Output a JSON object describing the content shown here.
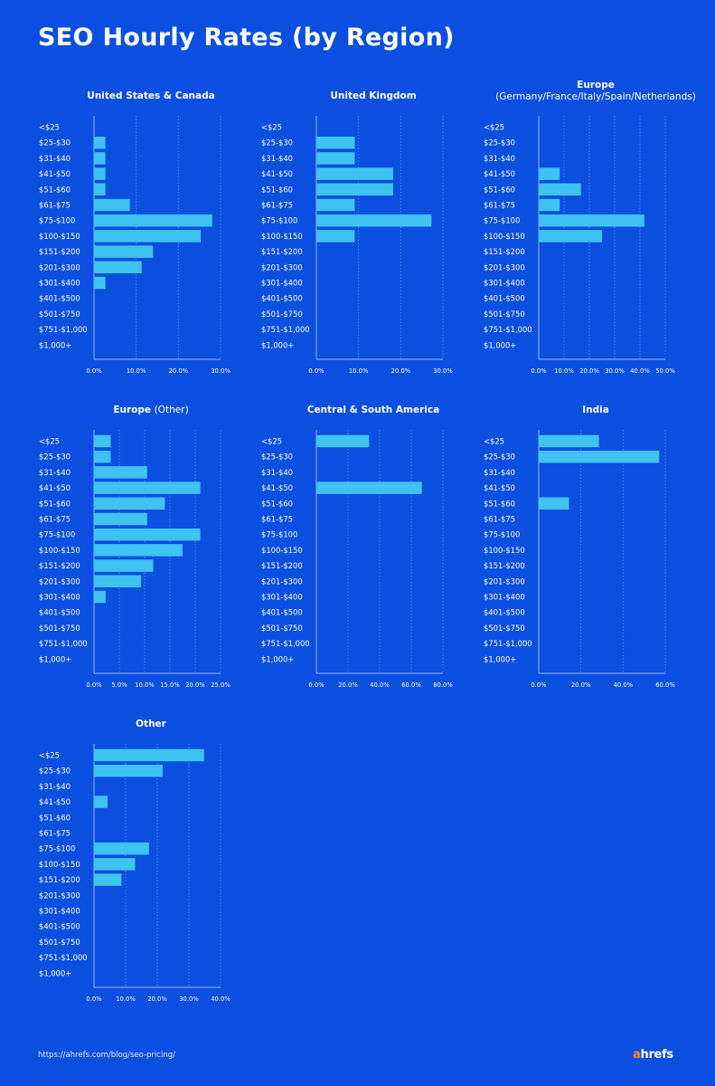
{
  "page": {
    "title": "SEO Hourly Rates (by Region)"
  },
  "footer": {
    "url": "https://ahrefs.com/blog/seo-pricing/",
    "logo_first": "a",
    "logo_rest": "hrefs"
  },
  "colors": {
    "background": "#0a4fe0",
    "bar": "#3ec3f2",
    "grid": "#5f8ff0",
    "axis": "#cfdcff"
  },
  "chart_data": [
    {
      "type": "bar",
      "orientation": "horizontal",
      "title": "United States & Canada",
      "subtitle": "",
      "categories": [
        "<$25",
        "$25-$30",
        "$31-$40",
        "$41-$50",
        "$51-$60",
        "$61-$75",
        "$75-$100",
        "$100-$150",
        "$151-$200",
        "$201-$300",
        "$301-$400",
        "$401-$500",
        "$501-$750",
        "$751-$1,000",
        "$1,000+"
      ],
      "values": [
        0,
        2.7,
        2.7,
        2.7,
        2.7,
        8.5,
        28.0,
        25.3,
        14.0,
        11.3,
        2.7,
        0,
        0,
        0,
        0
      ],
      "xlim": [
        0,
        30
      ],
      "xticks": [
        0,
        10,
        20,
        30
      ],
      "xtick_labels": [
        "0.0%",
        "10.0%",
        "20.0%",
        "30.0%"
      ]
    },
    {
      "type": "bar",
      "orientation": "horizontal",
      "title": "United Kingdom",
      "subtitle": "",
      "categories": [
        "<$25",
        "$25-$30",
        "$31-$40",
        "$41-$50",
        "$51-$60",
        "$61-$75",
        "$75-$100",
        "$100-$150",
        "$151-$200",
        "$201-$300",
        "$301-$400",
        "$401-$500",
        "$501-$750",
        "$751-$1,000",
        "$1,000+"
      ],
      "values": [
        0,
        9.1,
        9.1,
        18.2,
        18.2,
        9.1,
        27.3,
        9.1,
        0,
        0,
        0,
        0,
        0,
        0,
        0
      ],
      "xlim": [
        0,
        30
      ],
      "xticks": [
        0,
        10,
        20,
        30
      ],
      "xtick_labels": [
        "0.0%",
        "10.0%",
        "20.0%",
        "30.0%"
      ]
    },
    {
      "type": "bar",
      "orientation": "horizontal",
      "title": "Europe",
      "subtitle": "(Germany/France/Italy/Spain/Netherlands)",
      "categories": [
        "<$25",
        "$25-$30",
        "$31-$40",
        "$41-$50",
        "$51-$60",
        "$61-$75",
        "$75-$100",
        "$100-$150",
        "$151-$200",
        "$201-$300",
        "$301-$400",
        "$401-$500",
        "$501-$750",
        "$751-$1,000",
        "$1,000+"
      ],
      "values": [
        0,
        0,
        0,
        8.3,
        16.7,
        8.3,
        41.7,
        25.0,
        0,
        0,
        0,
        0,
        0,
        0,
        0
      ],
      "xlim": [
        0,
        50
      ],
      "xticks": [
        0,
        10,
        20,
        30,
        40,
        50
      ],
      "xtick_labels": [
        "0.0%",
        "10.0%",
        "20.0%",
        "30.0%",
        "40.0%",
        "50.0%"
      ]
    },
    {
      "type": "bar",
      "orientation": "horizontal",
      "title": "Europe",
      "subtitle": "(Other)",
      "categories": [
        "<$25",
        "$25-$30",
        "$31-$40",
        "$41-$50",
        "$51-$60",
        "$61-$75",
        "$75-$100",
        "$100-$150",
        "$151-$200",
        "$201-$300",
        "$301-$400",
        "$401-$500",
        "$501-$750",
        "$751-$1,000",
        "$1,000+"
      ],
      "values": [
        3.3,
        3.3,
        10.5,
        21.0,
        14.0,
        10.5,
        21.0,
        17.5,
        11.7,
        9.3,
        2.3,
        0,
        0,
        0,
        0
      ],
      "xlim": [
        0,
        25
      ],
      "xticks": [
        0,
        5,
        10,
        15,
        20,
        25
      ],
      "xtick_labels": [
        "0.0%",
        "5.0%",
        "10.0%",
        "15.0%",
        "20.0%",
        "25.0%"
      ]
    },
    {
      "type": "bar",
      "orientation": "horizontal",
      "title": "Central & South America",
      "subtitle": "",
      "categories": [
        "<$25",
        "$25-$30",
        "$31-$40",
        "$41-$50",
        "$51-$60",
        "$61-$75",
        "$75-$100",
        "$100-$150",
        "$151-$200",
        "$201-$300",
        "$301-$400",
        "$401-$500",
        "$501-$750",
        "$751-$1,000",
        "$1,000+"
      ],
      "values": [
        33.3,
        0,
        0,
        66.7,
        0,
        0,
        0,
        0,
        0,
        0,
        0,
        0,
        0,
        0,
        0
      ],
      "xlim": [
        0,
        80
      ],
      "xticks": [
        0,
        20,
        40,
        60,
        80
      ],
      "xtick_labels": [
        "0.0%",
        "20.0%",
        "40.0%",
        "60.0%",
        "80.0%"
      ]
    },
    {
      "type": "bar",
      "orientation": "horizontal",
      "title": "India",
      "subtitle": "",
      "categories": [
        "<$25",
        "$25-$30",
        "$31-$40",
        "$41-$50",
        "$51-$60",
        "$61-$75",
        "$75-$100",
        "$100-$150",
        "$151-$200",
        "$201-$300",
        "$301-$400",
        "$401-$500",
        "$501-$750",
        "$751-$1,000",
        "$1,000+"
      ],
      "values": [
        28.6,
        57.1,
        0,
        0,
        14.3,
        0,
        0,
        0,
        0,
        0,
        0,
        0,
        0,
        0,
        0
      ],
      "xlim": [
        0,
        60
      ],
      "xticks": [
        0,
        20,
        40,
        60
      ],
      "xtick_labels": [
        "0.0%",
        "20.0%",
        "40.0%",
        "60.0%"
      ]
    },
    {
      "type": "bar",
      "orientation": "horizontal",
      "title": "Other",
      "subtitle": "",
      "categories": [
        "<$25",
        "$25-$30",
        "$31-$40",
        "$41-$50",
        "$51-$60",
        "$61-$75",
        "$75-$100",
        "$100-$150",
        "$151-$200",
        "$201-$300",
        "$301-$400",
        "$401-$500",
        "$501-$750",
        "$751-$1,000",
        "$1,000+"
      ],
      "values": [
        34.8,
        21.7,
        0,
        4.3,
        0,
        0,
        17.4,
        13.0,
        8.7,
        0,
        0,
        0,
        0,
        0,
        0
      ],
      "xlim": [
        0,
        40
      ],
      "xticks": [
        0,
        10,
        20,
        30,
        40
      ],
      "xtick_labels": [
        "0.0%",
        "10.0%",
        "20.0%",
        "30.0%",
        "40.0%"
      ]
    }
  ]
}
